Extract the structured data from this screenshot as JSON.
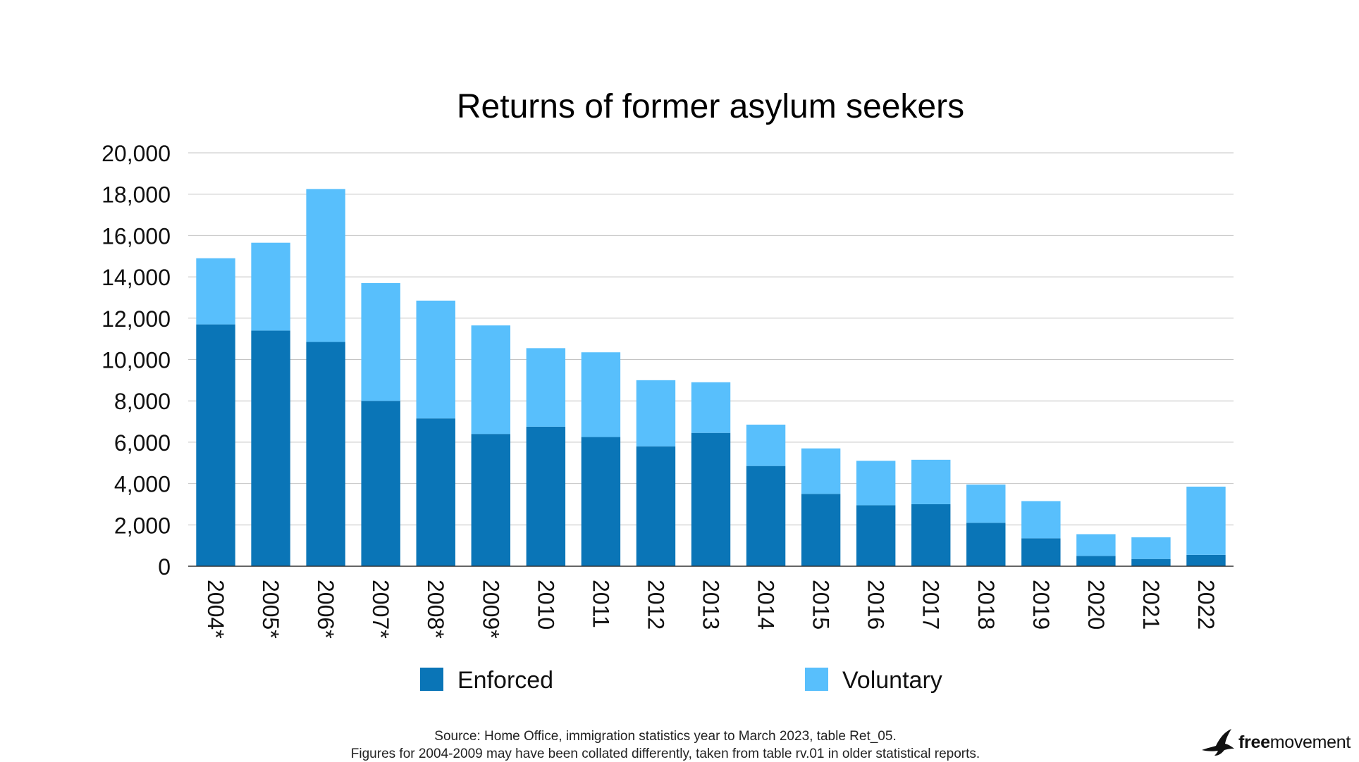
{
  "chart_data": {
    "type": "bar",
    "stacked": true,
    "title": "Returns of former asylum seekers",
    "categories": [
      "2004*",
      "2005*",
      "2006*",
      "2007*",
      "2008*",
      "2009*",
      "2010",
      "2011",
      "2012",
      "2013",
      "2014",
      "2015",
      "2016",
      "2017",
      "2018",
      "2019",
      "2020",
      "2021",
      "2022"
    ],
    "series": [
      {
        "name": "Enforced",
        "color": "#0a75b7",
        "values": [
          11700,
          11400,
          10850,
          8000,
          7150,
          6400,
          6750,
          6250,
          5800,
          6450,
          4850,
          3500,
          2950,
          3000,
          2100,
          1350,
          500,
          350,
          550
        ]
      },
      {
        "name": "Voluntary",
        "color": "#58bffc",
        "values": [
          3200,
          4250,
          7400,
          5700,
          5700,
          5250,
          3800,
          4100,
          3200,
          2450,
          2000,
          2200,
          2150,
          2150,
          1850,
          1800,
          1050,
          1050,
          3300
        ]
      }
    ],
    "y_ticks": [
      "0",
      "2,000",
      "4,000",
      "6,000",
      "8,000",
      "10,000",
      "12,000",
      "14,000",
      "16,000",
      "18,000",
      "20,000"
    ],
    "ylim": [
      0,
      20000
    ],
    "grid": true,
    "legend_position": "bottom"
  },
  "footer": {
    "source_line1": "Source: Home Office, immigration statistics year to March 2023, table Ret_05.",
    "source_line2": "Figures for 2004-2009 may have been collated differently, taken from table rv.01 in older statistical reports."
  },
  "logo": {
    "bold": "free",
    "regular": "movement"
  }
}
